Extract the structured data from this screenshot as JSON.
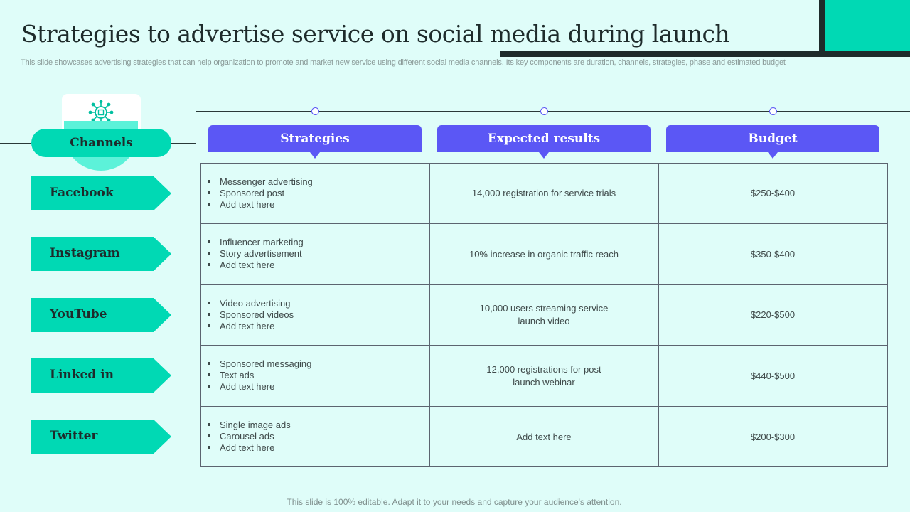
{
  "title": "Strategies to advertise service on social media during launch",
  "subtitle": "This slide showcases advertising strategies that can help organization to promote and market new service using different social media channels. Its key components are duration, channels, strategies, phase and estimated budget",
  "channels_header": {
    "label": "Channels",
    "icon": "network-hub-icon"
  },
  "columns": [
    "Strategies",
    "Expected results",
    "Budget"
  ],
  "rows": [
    {
      "channel": "Facebook",
      "strategies": [
        "Messenger advertising",
        "Sponsored post",
        "Add text here"
      ],
      "result": "14,000 registration for service trials",
      "budget": "$250-$400"
    },
    {
      "channel": "Instagram",
      "strategies": [
        "Influencer marketing",
        "Story advertisement",
        "Add text here"
      ],
      "result": "10% increase in organic traffic reach",
      "budget": "$350-$400"
    },
    {
      "channel": "YouTube",
      "strategies": [
        "Video advertising",
        "Sponsored videos",
        "Add text here"
      ],
      "result": "10,000 users streaming service launch video",
      "budget": "$220-$500"
    },
    {
      "channel": "Linked in",
      "strategies": [
        "Sponsored messaging",
        "Text ads",
        "Add text here"
      ],
      "result": "12,000 registrations for post launch webinar",
      "budget": "$440-$500"
    },
    {
      "channel": "Twitter",
      "strategies": [
        "Single image ads",
        "Carousel ads",
        "Add text here"
      ],
      "result": "Add text here",
      "budget": "$200-$300"
    }
  ],
  "footer": "This slide is 100% editable. Adapt it to your needs and capture your audience's attention.",
  "colors": {
    "background": "#dffdf9",
    "teal": "#00d9b4",
    "light_teal": "#5cf2d9",
    "purple": "#5b57f5",
    "dark": "#1e2b2b"
  }
}
